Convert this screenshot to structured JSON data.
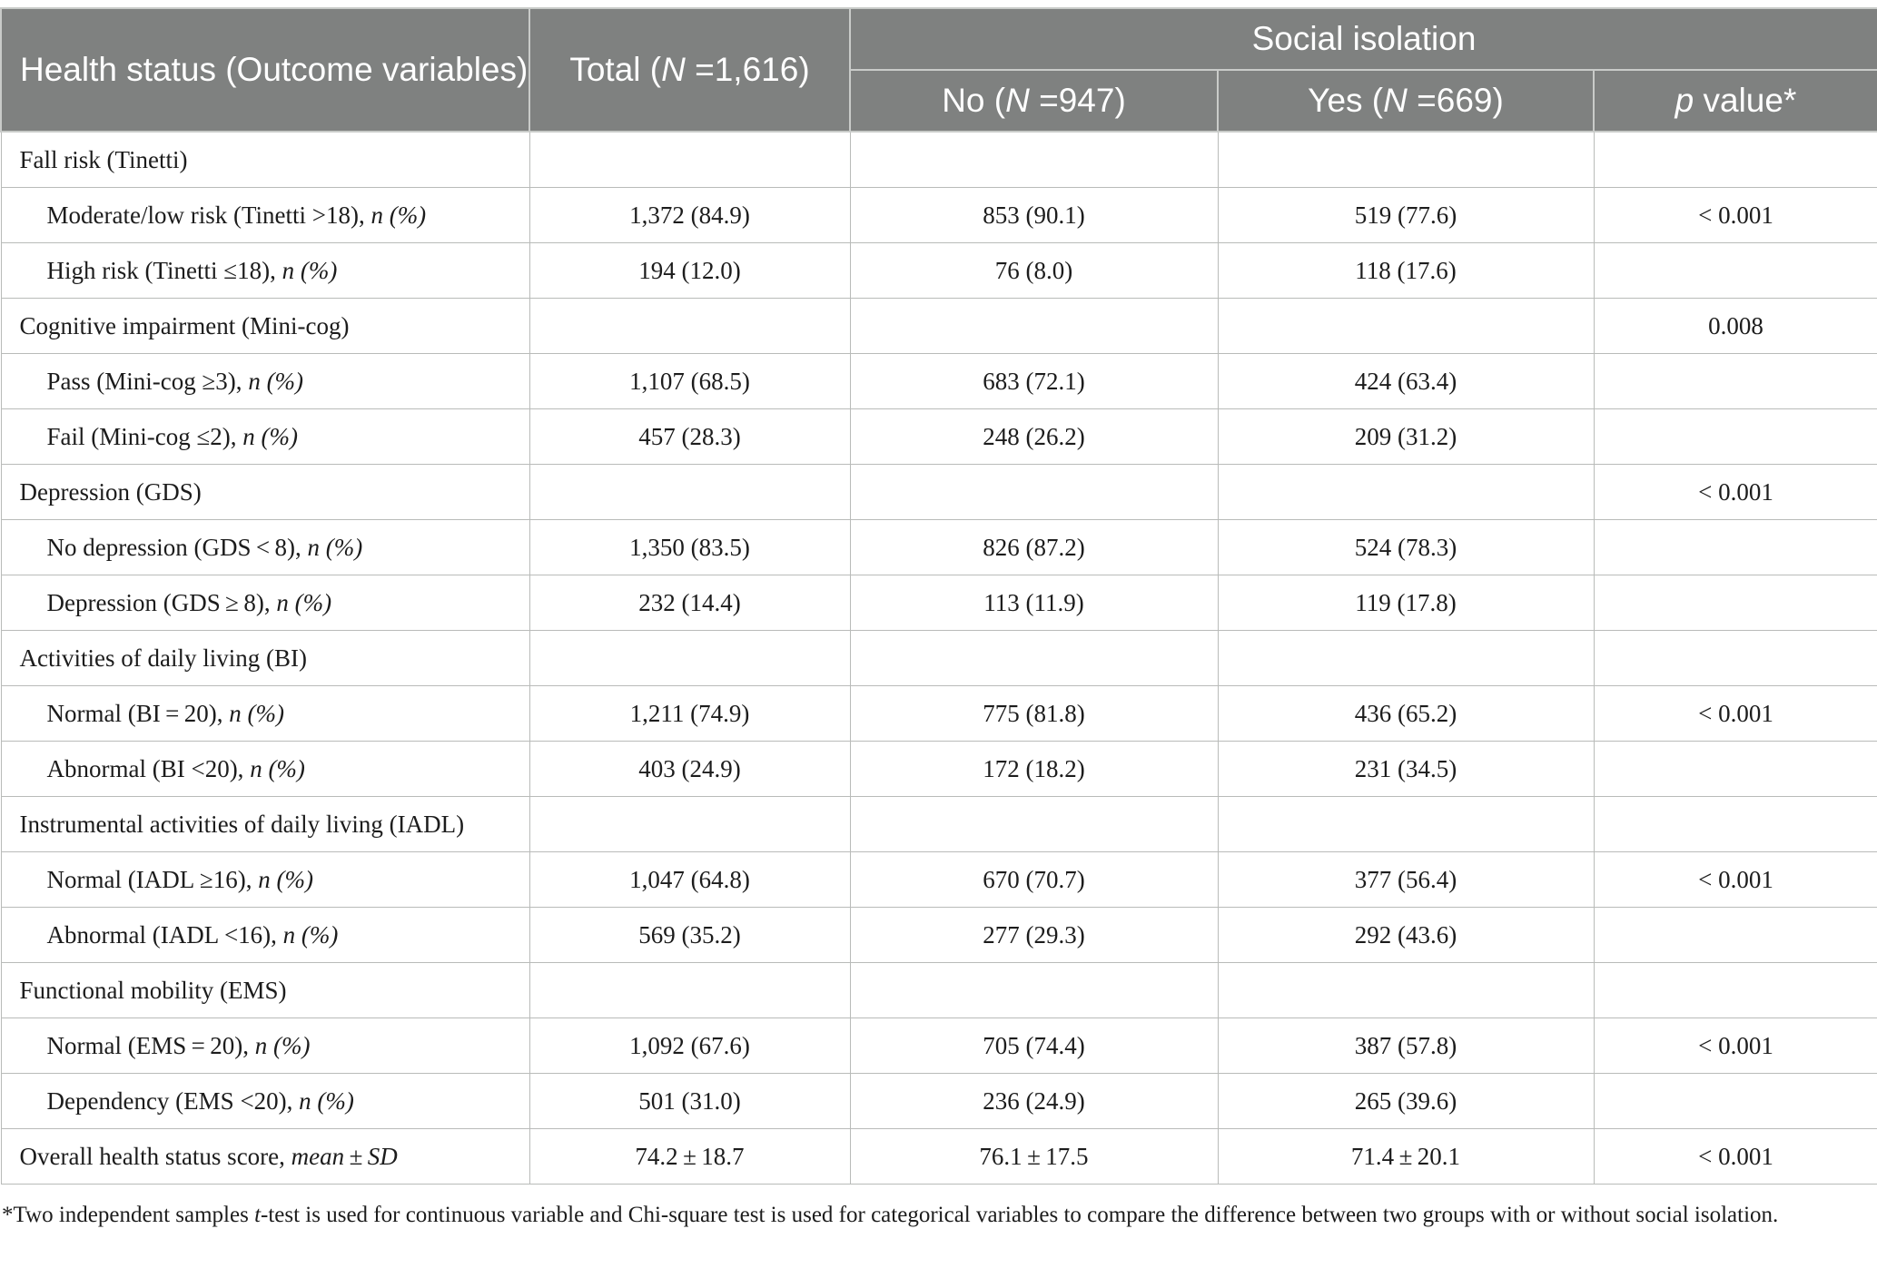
{
  "header": {
    "outcome_label": "Health status (Outcome variables)",
    "total_prefix": "Total (",
    "total_n_symbol": "N",
    "total_suffix": " =1,616)",
    "group_label": "Social isolation",
    "no_prefix": "No (",
    "no_n_symbol": "N",
    "no_suffix": " =947)",
    "yes_prefix": "Yes (",
    "yes_n_symbol": "N",
    "yes_suffix": " =669)",
    "p_symbol": "p",
    "p_suffix": " value*"
  },
  "rows": [
    {
      "label": "Fall risk (Tinetti)",
      "suffix": "",
      "total": "",
      "no": "",
      "yes": "",
      "p": ""
    },
    {
      "label": "Moderate/low risk (Tinetti >18), ",
      "suffix": "n (%)",
      "total": "1,372 (84.9)",
      "no": "853 (90.1)",
      "yes": "519 (77.6)",
      "p": "< 0.001"
    },
    {
      "label": "High risk (Tinetti ≤18), ",
      "suffix": "n (%)",
      "total": "194 (12.0)",
      "no": "76 (8.0)",
      "yes": "118 (17.6)",
      "p": ""
    },
    {
      "label": "Cognitive impairment (Mini-cog)",
      "suffix": "",
      "total": "",
      "no": "",
      "yes": "",
      "p": "0.008"
    },
    {
      "label": "Pass (Mini-cog ≥3), ",
      "suffix": "n (%)",
      "total": "1,107 (68.5)",
      "no": "683 (72.1)",
      "yes": "424 (63.4)",
      "p": ""
    },
    {
      "label": "Fail (Mini-cog ≤2), ",
      "suffix": "n (%)",
      "total": "457 (28.3)",
      "no": "248 (26.2)",
      "yes": "209 (31.2)",
      "p": ""
    },
    {
      "label": "Depression (GDS)",
      "suffix": "",
      "total": "",
      "no": "",
      "yes": "",
      "p": "< 0.001"
    },
    {
      "label": "No depression (GDS < 8), ",
      "suffix": "n (%)",
      "total": "1,350 (83.5)",
      "no": "826 (87.2)",
      "yes": "524 (78.3)",
      "p": ""
    },
    {
      "label": "Depression (GDS ≥ 8), ",
      "suffix": "n (%)",
      "total": "232 (14.4)",
      "no": "113 (11.9)",
      "yes": "119 (17.8)",
      "p": ""
    },
    {
      "label": "Activities of daily living (BI)",
      "suffix": "",
      "total": "",
      "no": "",
      "yes": "",
      "p": ""
    },
    {
      "label": "Normal (BI = 20), ",
      "suffix": "n (%)",
      "total": "1,211 (74.9)",
      "no": "775 (81.8)",
      "yes": "436 (65.2)",
      "p": "< 0.001"
    },
    {
      "label": "Abnormal (BI <20), ",
      "suffix": "n (%)",
      "total": "403 (24.9)",
      "no": "172 (18.2)",
      "yes": "231 (34.5)",
      "p": ""
    },
    {
      "label": "Instrumental activities of daily living (IADL)",
      "suffix": "",
      "total": "",
      "no": "",
      "yes": "",
      "p": ""
    },
    {
      "label": "Normal (IADL ≥16), ",
      "suffix": "n (%)",
      "total": "1,047 (64.8)",
      "no": "670 (70.7)",
      "yes": "377 (56.4)",
      "p": "< 0.001"
    },
    {
      "label": "Abnormal (IADL <16), ",
      "suffix": "n (%)",
      "total": "569 (35.2)",
      "no": "277 (29.3)",
      "yes": "292 (43.6)",
      "p": ""
    },
    {
      "label": "Functional mobility (EMS)",
      "suffix": "",
      "total": "",
      "no": "",
      "yes": "",
      "p": ""
    },
    {
      "label": "Normal (EMS = 20), ",
      "suffix": "n (%)",
      "total": "1,092 (67.6)",
      "no": "705 (74.4)",
      "yes": "387 (57.8)",
      "p": "< 0.001"
    },
    {
      "label": "Dependency (EMS <20), ",
      "suffix": "n (%)",
      "total": "501 (31.0)",
      "no": "236 (24.9)",
      "yes": "265 (39.6)",
      "p": ""
    },
    {
      "label": "Overall health status score, ",
      "suffix": "mean ± SD",
      "total": "74.2 ± 18.7",
      "no": "76.1 ± 17.5",
      "yes": "71.4 ± 20.1",
      "p": "< 0.001"
    }
  ],
  "footnote": {
    "part1": "*Two independent samples ",
    "italic": "t",
    "part2": "-test is used for continuous variable and Chi-square test is used for categorical variables to compare the difference between two groups with or without social isolation."
  }
}
